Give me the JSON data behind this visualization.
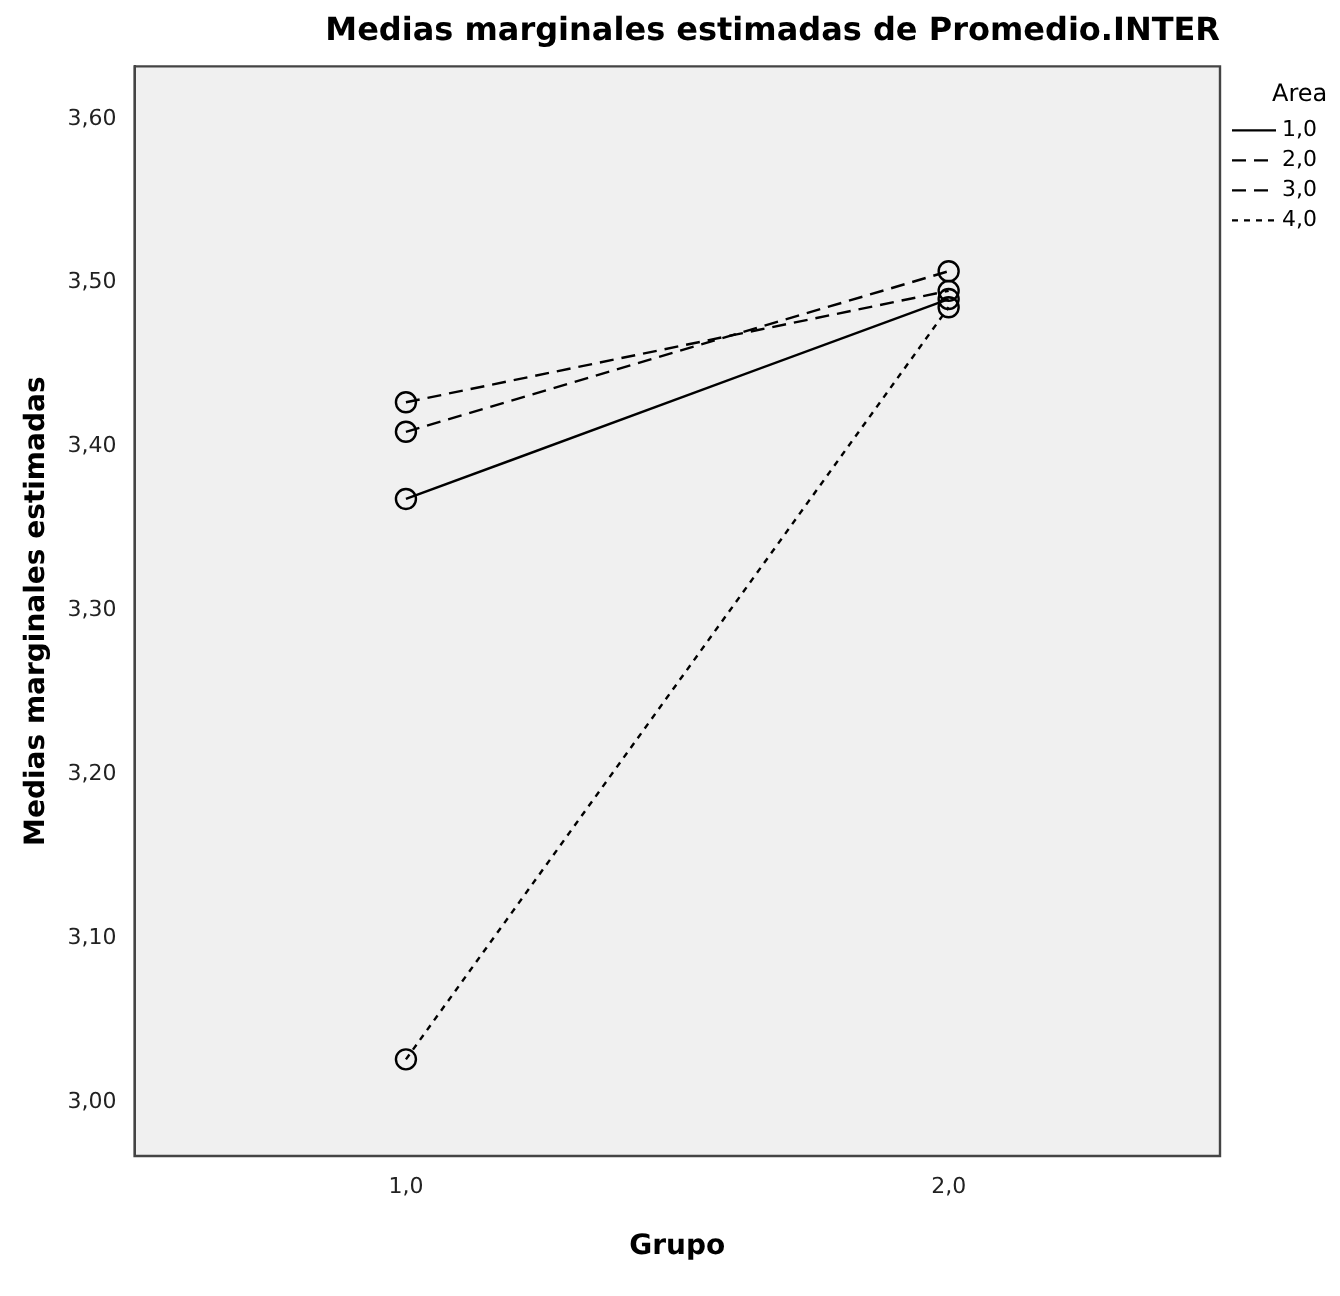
{
  "chart_data": {
    "type": "line",
    "title": "Medias marginales estimadas de Promedio.INTER",
    "xlabel": "Grupo",
    "ylabel": "Medias marginales estimadas",
    "legend_title": "Area",
    "categories": [
      "1,0",
      "2,0"
    ],
    "series": [
      {
        "name": "1,0",
        "color": "#000000",
        "line_style": "solid",
        "values": [
          3.368,
          3.49
        ]
      },
      {
        "name": "2,0",
        "color": "#000000",
        "line_style": "dashed",
        "values": [
          3.427,
          3.495
        ]
      },
      {
        "name": "3,0",
        "color": "#000000",
        "line_style": "dashed",
        "values": [
          3.409,
          3.507
        ]
      },
      {
        "name": "4,0",
        "color": "#000000",
        "line_style": "dotted",
        "values": [
          3.026,
          3.485
        ]
      }
    ],
    "ylim": [
      2.967,
      3.632
    ],
    "yticks": [
      {
        "value": 3.0,
        "label": "3,00"
      },
      {
        "value": 3.1,
        "label": "3,10"
      },
      {
        "value": 3.2,
        "label": "3,20"
      },
      {
        "value": 3.3,
        "label": "3,30"
      },
      {
        "value": 3.4,
        "label": "3,40"
      },
      {
        "value": 3.5,
        "label": "3,50"
      },
      {
        "value": 3.6,
        "label": "3,60"
      }
    ],
    "marker": "circle",
    "grid": false,
    "legend": "right"
  }
}
